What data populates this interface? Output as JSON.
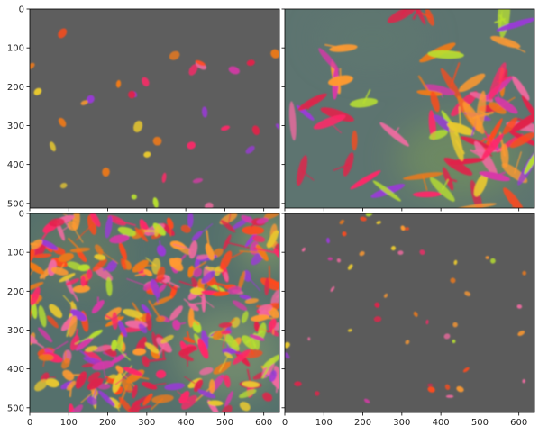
{
  "figure": {
    "panels": [
      {
        "id": "top-left",
        "show_y_labels": true,
        "show_x_labels": false,
        "background": "#5e5e5e",
        "texture": "sparse"
      },
      {
        "id": "top-right",
        "show_y_labels": false,
        "show_x_labels": false,
        "background": "#5d7470",
        "texture": "network-right"
      },
      {
        "id": "bottom-left",
        "show_y_labels": true,
        "show_x_labels": true,
        "background": "#55706c",
        "texture": "dense"
      },
      {
        "id": "bottom-right",
        "show_y_labels": false,
        "show_x_labels": true,
        "background": "#5b5b5b",
        "texture": "sparse-small"
      }
    ],
    "axes": {
      "x_ticks": [
        "0",
        "100",
        "200",
        "300",
        "400",
        "500",
        "600"
      ],
      "y_ticks": [
        "0",
        "100",
        "200",
        "300",
        "400",
        "500"
      ],
      "x_values": [
        0,
        100,
        200,
        300,
        400,
        500,
        600
      ],
      "y_values": [
        0,
        100,
        200,
        300,
        400,
        500
      ],
      "x_range": [
        0,
        640
      ],
      "y_range": [
        0,
        512
      ]
    },
    "cell_colors": [
      "#e0234a",
      "#ff4a1c",
      "#f07a18",
      "#e8c830",
      "#b8e030",
      "#d838a8",
      "#ff2868",
      "#f06aa0",
      "#9a3ad8",
      "#ff9a30"
    ]
  }
}
